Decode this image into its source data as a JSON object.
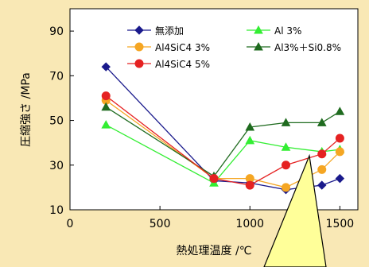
{
  "chart_data": {
    "type": "line",
    "title": "",
    "xlabel": "熱処理温度 /℃",
    "ylabel": "圧縮強さ /MPa",
    "xlim": [
      0,
      1600
    ],
    "ylim": [
      10,
      100
    ],
    "xticks": [
      0,
      500,
      1000,
      1500
    ],
    "yticks": [
      10,
      30,
      50,
      70,
      90
    ],
    "grid": false,
    "legend_position": "top-right",
    "series": [
      {
        "name": "無添加",
        "color": "#1a1a8c",
        "marker": "diamond",
        "x": [
          200,
          800,
          1000,
          1200,
          1400,
          1500
        ],
        "y": [
          74,
          23,
          22,
          19,
          21,
          24
        ]
      },
      {
        "name": "Al 3%",
        "color": "#33ee33",
        "marker": "triangle",
        "x": [
          200,
          800,
          1000,
          1200,
          1400,
          1500
        ],
        "y": [
          48,
          22,
          41,
          38,
          36,
          37
        ]
      },
      {
        "name": "Al4SiC4 3%",
        "color": "#f5a623",
        "marker": "circle",
        "x": [
          200,
          800,
          1000,
          1200,
          1400,
          1500
        ],
        "y": [
          59,
          24,
          24,
          20,
          28,
          36
        ]
      },
      {
        "name": "Al3%＋Si0.8%",
        "color": "#1f6b1f",
        "marker": "triangle",
        "x": [
          200,
          800,
          1000,
          1200,
          1400,
          1500
        ],
        "y": [
          56,
          25,
          47,
          49,
          49,
          54
        ]
      },
      {
        "name": "Al4SiC4 5%",
        "color": "#e52222",
        "marker": "circle",
        "x": [
          200,
          800,
          1000,
          1200,
          1400,
          1500
        ],
        "y": [
          61,
          24,
          21,
          30,
          35,
          42
        ]
      }
    ]
  }
}
